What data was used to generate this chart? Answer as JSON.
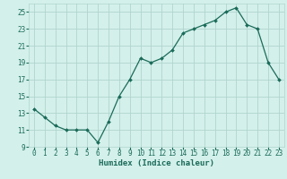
{
  "x": [
    0,
    1,
    2,
    3,
    4,
    5,
    6,
    7,
    8,
    9,
    10,
    11,
    12,
    13,
    14,
    15,
    16,
    17,
    18,
    19,
    20,
    21,
    22,
    23
  ],
  "y": [
    13.5,
    12.5,
    11.5,
    11.0,
    11.0,
    11.0,
    9.5,
    12.0,
    15.0,
    17.0,
    19.5,
    19.0,
    19.5,
    20.5,
    22.5,
    23.0,
    23.5,
    24.0,
    25.0,
    25.5,
    23.5,
    23.0,
    19.0,
    17.0
  ],
  "line_color": "#1a6b5a",
  "marker": "D",
  "marker_size": 2,
  "bg_color": "#d4f0eb",
  "grid_color": "#b0d5ce",
  "xlabel": "Humidex (Indice chaleur)",
  "xlim": [
    -0.5,
    23.5
  ],
  "ylim": [
    9,
    26
  ],
  "yticks": [
    9,
    11,
    13,
    15,
    17,
    19,
    21,
    23,
    25
  ],
  "xticks": [
    0,
    1,
    2,
    3,
    4,
    5,
    6,
    7,
    8,
    9,
    10,
    11,
    12,
    13,
    14,
    15,
    16,
    17,
    18,
    19,
    20,
    21,
    22,
    23
  ],
  "label_color": "#1a6b5a",
  "font_size_label": 6.5,
  "font_size_tick": 5.5,
  "linewidth": 0.9
}
